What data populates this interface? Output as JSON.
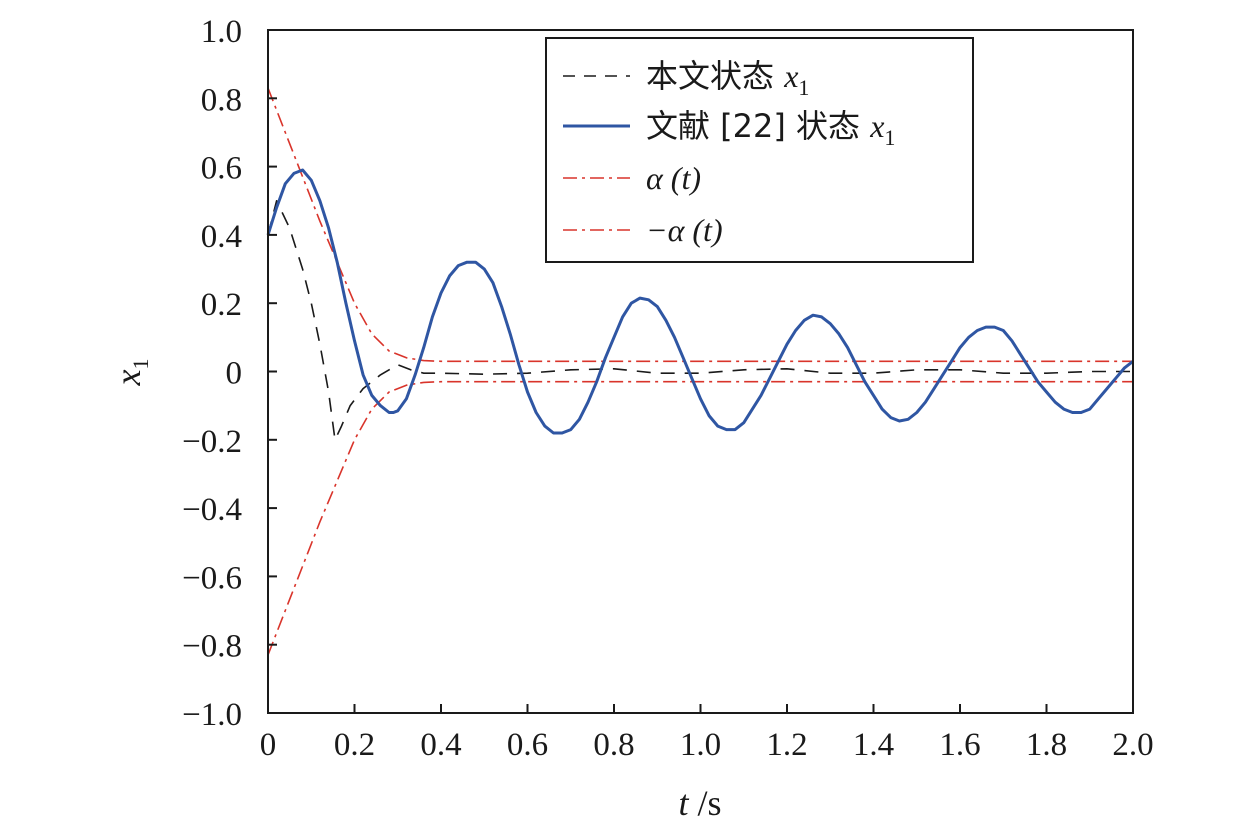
{
  "chart_data": {
    "type": "line",
    "xlabel": {
      "var": "t",
      "unit": "/s"
    },
    "ylabel": {
      "var": "x",
      "sub": "1"
    },
    "xlim": [
      0,
      2.0
    ],
    "ylim": [
      -1.0,
      1.0
    ],
    "xticks": [
      0,
      0.2,
      0.4,
      0.6,
      0.8,
      1.0,
      1.2,
      1.4,
      1.6,
      1.8,
      2.0
    ],
    "xtick_labels": [
      "0",
      "0.2",
      "0.4",
      "0.6",
      "0.8",
      "1.0",
      "1.2",
      "1.4",
      "1.6",
      "1.8",
      "2.0"
    ],
    "yticks": [
      1.0,
      0.8,
      0.6,
      0.4,
      0.2,
      0,
      -0.2,
      -0.4,
      -0.6,
      -0.8,
      -1.0
    ],
    "ytick_labels": [
      "1.0",
      "0.8",
      "0.6",
      "0.4",
      "0.2",
      "0",
      "−0.2",
      "−0.4",
      "−0.6",
      "−0.8",
      "−1.0"
    ],
    "grid": false,
    "legend_position": "top-right",
    "series": [
      {
        "name": "本文状态 x1",
        "legend_text": "本文状态 ",
        "legend_var": "x",
        "legend_sub": "1",
        "color": "#1a1a1a",
        "style": "dashed",
        "x": [
          0,
          0.02,
          0.05,
          0.08,
          0.1,
          0.12,
          0.14,
          0.155,
          0.17,
          0.19,
          0.22,
          0.26,
          0.3,
          0.33,
          0.36,
          0.4,
          0.5,
          0.6,
          0.7,
          0.8,
          0.9,
          1.0,
          1.1,
          1.2,
          1.3,
          1.4,
          1.5,
          1.6,
          1.7,
          1.8,
          1.9,
          2.0
        ],
        "y": [
          0.4,
          0.5,
          0.42,
          0.3,
          0.2,
          0.08,
          -0.06,
          -0.2,
          -0.16,
          -0.1,
          -0.05,
          -0.01,
          0.02,
          0.005,
          -0.005,
          -0.005,
          -0.008,
          -0.005,
          0.005,
          0.008,
          -0.005,
          -0.005,
          0.005,
          0.008,
          -0.005,
          -0.005,
          0.005,
          0.005,
          -0.005,
          -0.005,
          0.0,
          0.0
        ]
      },
      {
        "name": "文献 [22] 状态 x1",
        "legend_text": "文献 [22] 状态 ",
        "legend_var": "x",
        "legend_sub": "1",
        "color": "#2f56a3",
        "style": "solid",
        "x": [
          0,
          0.02,
          0.04,
          0.06,
          0.08,
          0.1,
          0.12,
          0.14,
          0.16,
          0.18,
          0.2,
          0.22,
          0.24,
          0.26,
          0.28,
          0.29,
          0.3,
          0.32,
          0.34,
          0.36,
          0.38,
          0.4,
          0.42,
          0.44,
          0.46,
          0.48,
          0.5,
          0.52,
          0.54,
          0.56,
          0.58,
          0.6,
          0.62,
          0.64,
          0.66,
          0.68,
          0.7,
          0.72,
          0.74,
          0.76,
          0.78,
          0.8,
          0.82,
          0.84,
          0.86,
          0.88,
          0.9,
          0.92,
          0.94,
          0.96,
          0.98,
          1.0,
          1.02,
          1.04,
          1.06,
          1.08,
          1.1,
          1.12,
          1.14,
          1.16,
          1.18,
          1.2,
          1.22,
          1.24,
          1.26,
          1.28,
          1.3,
          1.32,
          1.34,
          1.36,
          1.38,
          1.4,
          1.42,
          1.44,
          1.46,
          1.48,
          1.5,
          1.52,
          1.54,
          1.56,
          1.58,
          1.6,
          1.62,
          1.64,
          1.66,
          1.68,
          1.7,
          1.72,
          1.74,
          1.76,
          1.78,
          1.8,
          1.82,
          1.84,
          1.86,
          1.88,
          1.9,
          1.92,
          1.94,
          1.96,
          1.98,
          2.0
        ],
        "y": [
          0.4,
          0.48,
          0.55,
          0.58,
          0.59,
          0.56,
          0.5,
          0.42,
          0.32,
          0.2,
          0.09,
          -0.01,
          -0.07,
          -0.1,
          -0.12,
          -0.12,
          -0.115,
          -0.08,
          -0.01,
          0.07,
          0.16,
          0.23,
          0.28,
          0.31,
          0.32,
          0.32,
          0.3,
          0.26,
          0.19,
          0.11,
          0.02,
          -0.06,
          -0.12,
          -0.16,
          -0.18,
          -0.18,
          -0.17,
          -0.14,
          -0.09,
          -0.03,
          0.04,
          0.1,
          0.16,
          0.2,
          0.215,
          0.21,
          0.19,
          0.15,
          0.1,
          0.04,
          -0.02,
          -0.08,
          -0.13,
          -0.16,
          -0.17,
          -0.17,
          -0.15,
          -0.11,
          -0.07,
          -0.02,
          0.03,
          0.08,
          0.12,
          0.15,
          0.165,
          0.16,
          0.14,
          0.11,
          0.07,
          0.02,
          -0.03,
          -0.07,
          -0.11,
          -0.135,
          -0.145,
          -0.14,
          -0.12,
          -0.09,
          -0.05,
          -0.01,
          0.03,
          0.07,
          0.1,
          0.12,
          0.13,
          0.13,
          0.12,
          0.09,
          0.05,
          0.01,
          -0.03,
          -0.06,
          -0.09,
          -0.11,
          -0.12,
          -0.12,
          -0.11,
          -0.08,
          -0.05,
          -0.02,
          0.01,
          0.03
        ]
      },
      {
        "name": "α (t)",
        "legend_text": "α (t)",
        "color": "#d9342b",
        "style": "dashdot",
        "x": [
          0,
          0.04,
          0.08,
          0.12,
          0.16,
          0.2,
          0.24,
          0.28,
          0.32,
          0.36,
          0.4,
          0.5,
          0.6,
          0.8,
          1.0,
          1.2,
          1.4,
          1.6,
          1.8,
          2.0
        ],
        "y": [
          0.83,
          0.7,
          0.57,
          0.44,
          0.32,
          0.2,
          0.11,
          0.06,
          0.04,
          0.032,
          0.03,
          0.03,
          0.03,
          0.03,
          0.03,
          0.03,
          0.03,
          0.03,
          0.03,
          0.03
        ]
      },
      {
        "name": "−α (t)",
        "legend_text": "−α (t)",
        "color": "#d9342b",
        "style": "dashdot",
        "x": [
          0,
          0.04,
          0.08,
          0.12,
          0.16,
          0.2,
          0.24,
          0.28,
          0.32,
          0.36,
          0.4,
          0.5,
          0.6,
          0.8,
          1.0,
          1.2,
          1.4,
          1.6,
          1.8,
          2.0
        ],
        "y": [
          -0.83,
          -0.7,
          -0.57,
          -0.44,
          -0.32,
          -0.2,
          -0.11,
          -0.06,
          -0.04,
          -0.032,
          -0.03,
          -0.03,
          -0.03,
          -0.03,
          -0.03,
          -0.03,
          -0.03,
          -0.03,
          -0.03,
          -0.03
        ]
      }
    ]
  }
}
